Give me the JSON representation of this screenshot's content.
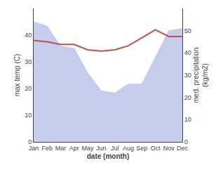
{
  "chart_data": {
    "type": "line",
    "categories": [
      "Jan",
      "Feb",
      "Mar",
      "Apr",
      "May",
      "Jun",
      "Jul",
      "Aug",
      "Sep",
      "Oct",
      "Nov",
      "Dec"
    ],
    "series": [
      {
        "type": "area",
        "axis": "y2",
        "color": "#c5ccec",
        "values": [
          54,
          52,
          43,
          42,
          31,
          23,
          22,
          26,
          26,
          38,
          50,
          51
        ]
      },
      {
        "type": "line",
        "color": "#c0504d",
        "values": [
          38,
          37.5,
          36.5,
          36.5,
          34.5,
          34,
          34.5,
          36,
          39,
          42,
          39.5,
          39.5
        ]
      }
    ],
    "xlabel": "date (month)",
    "ylabel": "max temp (C)",
    "y2label": "med. precipitation\n(kg/m2)",
    "ylim": [
      0,
      50
    ],
    "yticks": [
      0,
      10,
      20,
      30,
      40
    ],
    "y2lim": [
      0,
      60
    ],
    "y2ticks": [
      0,
      10,
      20,
      30,
      40,
      50
    ],
    "grid": false
  }
}
